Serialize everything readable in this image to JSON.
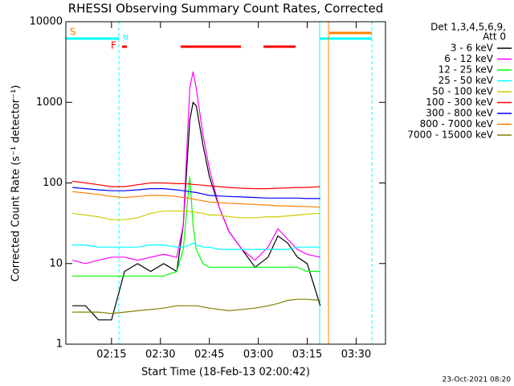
{
  "chart_data": {
    "type": "line",
    "title": "RHESSI Observing Summary Count Rates, Corrected",
    "xlabel": "Start Time (18-Feb-13 02:00:42)",
    "ylabel": "Corrected Count Rate (s⁻¹ detector⁻¹)",
    "legend_title": [
      "Det 1,3,4,5,6,9,",
      "Att 0"
    ],
    "footer": "23-Oct-2021 08:20",
    "annotations": [
      "S",
      "N",
      "F"
    ],
    "log_y": true,
    "legend": "right",
    "xlim": [
      "02:01",
      "03:39"
    ],
    "xticks": [
      "02:15",
      "02:30",
      "02:45",
      "03:00",
      "03:15",
      "03:30"
    ],
    "ylim": [
      1,
      10000
    ],
    "yticks": [
      1,
      10,
      100,
      1000,
      10000
    ],
    "x": [
      "02:03",
      "02:07",
      "02:11",
      "02:15",
      "02:19",
      "02:23",
      "02:27",
      "02:31",
      "02:35",
      "02:37",
      "02:39",
      "02:40",
      "02:41",
      "02:43",
      "02:45",
      "02:48",
      "02:51",
      "02:55",
      "02:59",
      "03:03",
      "03:06",
      "03:09",
      "03:12",
      "03:15",
      "03:19"
    ],
    "series": [
      {
        "name": "3 - 6 keV",
        "color": "#000000",
        "values": [
          3,
          3,
          2,
          2,
          8,
          10,
          8,
          10,
          8,
          30,
          600,
          1000,
          900,
          300,
          120,
          50,
          25,
          15,
          9,
          12,
          22,
          18,
          12,
          10,
          3
        ]
      },
      {
        "name": "6 - 12 keV",
        "color": "#ff00ff",
        "values": [
          11,
          10,
          11,
          12,
          12,
          11,
          12,
          13,
          12,
          30,
          1500,
          2400,
          1500,
          400,
          150,
          50,
          25,
          15,
          11,
          16,
          27,
          20,
          15,
          13,
          12
        ]
      },
      {
        "name": "12 - 25 keV",
        "color": "#00ff00",
        "values": [
          7,
          7,
          7,
          7,
          7,
          7,
          7,
          7,
          8,
          15,
          120,
          30,
          15,
          10,
          9,
          9,
          9,
          9,
          9,
          9,
          9,
          9,
          9,
          8,
          8
        ]
      },
      {
        "name": "25 - 50 keV",
        "color": "#00ffff",
        "values": [
          17,
          17,
          16,
          16,
          16,
          16,
          17,
          17,
          16,
          16,
          17,
          18,
          17,
          16,
          16,
          15,
          15,
          15,
          15,
          15,
          15,
          15,
          16,
          16,
          16
        ]
      },
      {
        "name": "50 - 100 keV",
        "color": "#cccc00",
        "values": [
          42,
          40,
          38,
          35,
          35,
          37,
          42,
          45,
          45,
          45,
          44,
          44,
          43,
          42,
          40,
          40,
          38,
          37,
          37,
          38,
          38,
          39,
          40,
          41,
          42
        ]
      },
      {
        "name": "100 - 300 keV",
        "color": "#ff0000",
        "values": [
          105,
          100,
          95,
          90,
          90,
          95,
          100,
          100,
          98,
          98,
          97,
          96,
          95,
          94,
          92,
          90,
          88,
          86,
          85,
          85,
          86,
          87,
          88,
          88,
          90
        ]
      },
      {
        "name": "300 - 800 keV",
        "color": "#0000ff",
        "values": [
          88,
          85,
          82,
          80,
          80,
          82,
          85,
          85,
          82,
          80,
          78,
          77,
          76,
          73,
          70,
          69,
          68,
          67,
          66,
          65,
          65,
          65,
          65,
          64,
          64
        ]
      },
      {
        "name": "800 - 7000 keV",
        "color": "#ff8000",
        "values": [
          78,
          75,
          72,
          68,
          66,
          68,
          70,
          70,
          68,
          66,
          64,
          63,
          62,
          60,
          58,
          57,
          56,
          55,
          54,
          53,
          52,
          52,
          51,
          51,
          50
        ]
      },
      {
        "name": "7000 - 15000 keV",
        "color": "#808000",
        "values": [
          2.5,
          2.5,
          2.5,
          2.4,
          2.5,
          2.6,
          2.7,
          2.8,
          3,
          3,
          3,
          3,
          3,
          2.9,
          2.8,
          2.7,
          2.6,
          2.7,
          2.8,
          3,
          3.2,
          3.5,
          3.6,
          3.6,
          3.5
        ]
      }
    ]
  }
}
